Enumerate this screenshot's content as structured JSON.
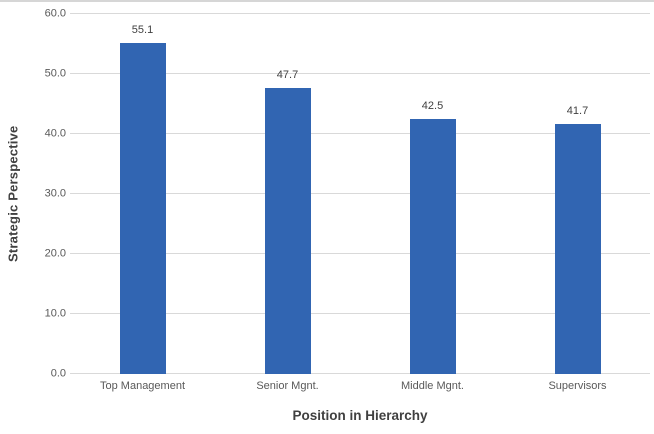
{
  "chart_data": {
    "type": "bar",
    "title": "",
    "categories": [
      "Top Management",
      "Senior Mgnt.",
      "Middle Mgnt.",
      "Supervisors"
    ],
    "values": [
      55.1,
      47.7,
      42.5,
      41.7
    ],
    "value_labels": [
      "55.1",
      "47.7",
      "42.5",
      "41.7"
    ],
    "xlabel": "Position in Hierarchy",
    "ylabel": "Strategic Perspective",
    "ylim": [
      0,
      60
    ],
    "yticks": [
      0,
      10,
      20,
      30,
      40,
      50,
      60
    ],
    "ytick_labels": [
      "0.0",
      "10.0",
      "20.0",
      "30.0",
      "40.0",
      "50.0",
      "60.0"
    ],
    "grid": true,
    "legend": false,
    "colors": {
      "bar": "#3165B2",
      "gridline": "#D9D9D9",
      "axis_tick_text": "#595959",
      "category_text": "#595959",
      "value_label_text": "#404040",
      "axis_title_text": "#404040",
      "top_edge": "#D6D6D6",
      "background": "#FFFFFF"
    }
  }
}
